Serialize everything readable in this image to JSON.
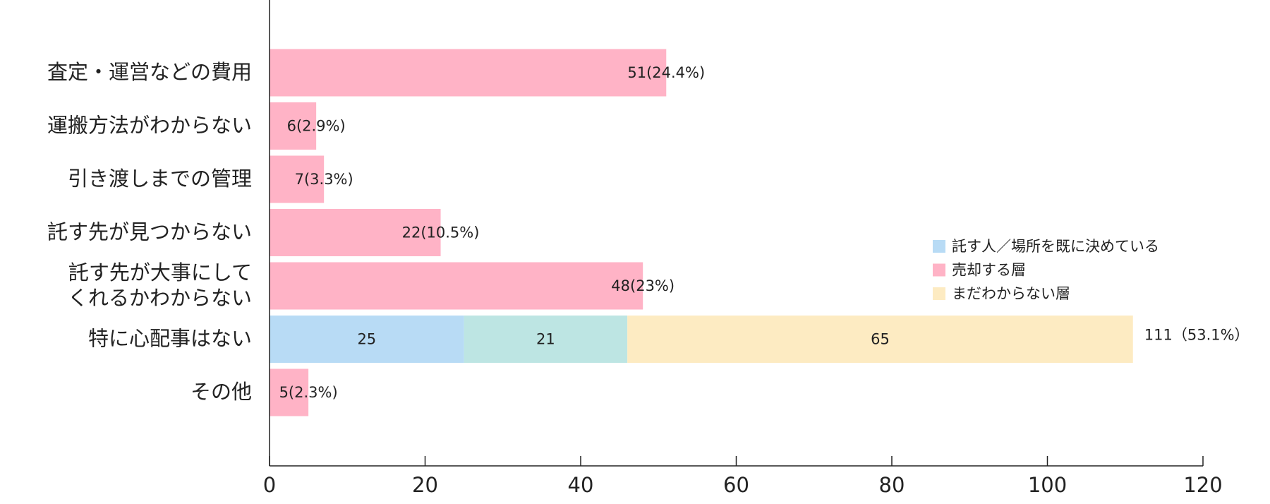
{
  "chart_data": {
    "type": "bar",
    "orientation": "horizontal",
    "title": "",
    "xlabel": "",
    "ylabel": "",
    "xlim": [
      0,
      120
    ],
    "x_ticks": [
      0,
      20,
      40,
      60,
      80,
      100,
      120
    ],
    "grid": false,
    "legend_position": "right",
    "categories": [
      [
        "査定・運営などの費用"
      ],
      [
        "運搬方法がわからない"
      ],
      [
        "引き渡しまでの管理"
      ],
      [
        "託す先が見つからない"
      ],
      [
        "託す先が大事にして",
        "くれるかわからない"
      ],
      [
        "特に心配事はない"
      ],
      [
        "その他"
      ]
    ],
    "values": [
      51,
      6,
      7,
      22,
      48,
      111,
      5
    ],
    "value_labels": [
      "51(24.4%)",
      "6(2.9%)",
      "7(3.3%)",
      "22(10.5%)",
      "48(23%)",
      "111（53.1%）",
      "5(2.3%)"
    ],
    "stacked_row": {
      "category_index": 5,
      "segments": [
        {
          "value": 25,
          "label": "25",
          "color": "#b8dbf5"
        },
        {
          "value": 21,
          "label": "21",
          "color": "#bde5e3"
        },
        {
          "value": 65,
          "label": "65",
          "color": "#fdebc2"
        }
      ]
    },
    "bar_color": "#ffb3c6",
    "legend": [
      {
        "label": "託す人／場所を既に決めている",
        "color": "#b8dbf5"
      },
      {
        "label": "売却する層",
        "color": "#ffb3c6"
      },
      {
        "label": "まだわからない層",
        "color": "#fdebc2"
      }
    ]
  }
}
